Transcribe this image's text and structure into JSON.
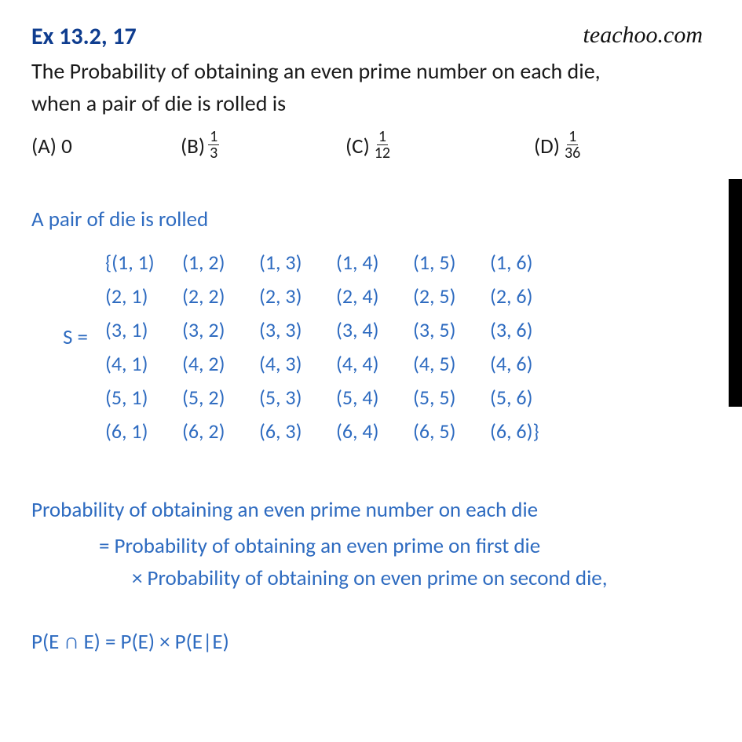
{
  "header": {
    "ex_title": "Ex 13.2, 17",
    "brand": "teachoo.com"
  },
  "question": {
    "line1": "The Probability of obtaining an even prime number on each die,",
    "line2": "when a pair of die is rolled is"
  },
  "options": {
    "a_label": "(A) 0",
    "b_label": "(B)",
    "b_num": "1",
    "b_den": "3",
    "c_label": "(C)",
    "c_num": "1",
    "c_den": "12",
    "d_label": "(D)",
    "d_num": "1",
    "d_den": "36"
  },
  "solution": {
    "sub1": "A pair of die is rolled",
    "s_label": "S =",
    "grid": [
      [
        "{(1, 1)",
        "(1, 2)",
        "(1, 3)",
        "(1, 4)",
        "(1, 5)",
        "(1, 6)"
      ],
      [
        "(2, 1)",
        "(2, 2)",
        "(2, 3)",
        "(2, 4)",
        "(2, 5)",
        "(2, 6)"
      ],
      [
        "(3, 1)",
        "(3, 2)",
        "(3, 3)",
        "(3, 4)",
        "(3, 5)",
        "(3, 6)"
      ],
      [
        "(4, 1)",
        "(4, 2)",
        "(4, 3)",
        "(4, 4)",
        "(4, 5)",
        "(4, 6)"
      ],
      [
        "(5, 1)",
        "(5, 2)",
        "(5, 3)",
        "(5, 4)",
        "(5, 5)",
        "(5, 6)"
      ],
      [
        "(6, 1)",
        "(6, 2)",
        "(6, 3)",
        "(6, 4)",
        "(6, 5)",
        "(6, 6)}"
      ]
    ],
    "prob1": "Probability of obtaining an even prime number on each die",
    "prob2": "= Probability of obtaining an even prime on first die",
    "prob3": "×  Probability of obtaining on even prime on second die,",
    "formula": "P(E ∩ E)  = P(E)  × P(E|E)"
  },
  "style": {
    "heading_color": "#0f3d8f",
    "body_color": "#1a1a1a",
    "solution_color": "#2e6bc0",
    "brand_color": "#111111",
    "bg": "#ffffff",
    "title_fontsize": 30,
    "question_fontsize": 28,
    "option_fontsize": 27,
    "solution_fontsize": 27,
    "grid_fontsize": 26,
    "fraction_fontsize": 20
  }
}
